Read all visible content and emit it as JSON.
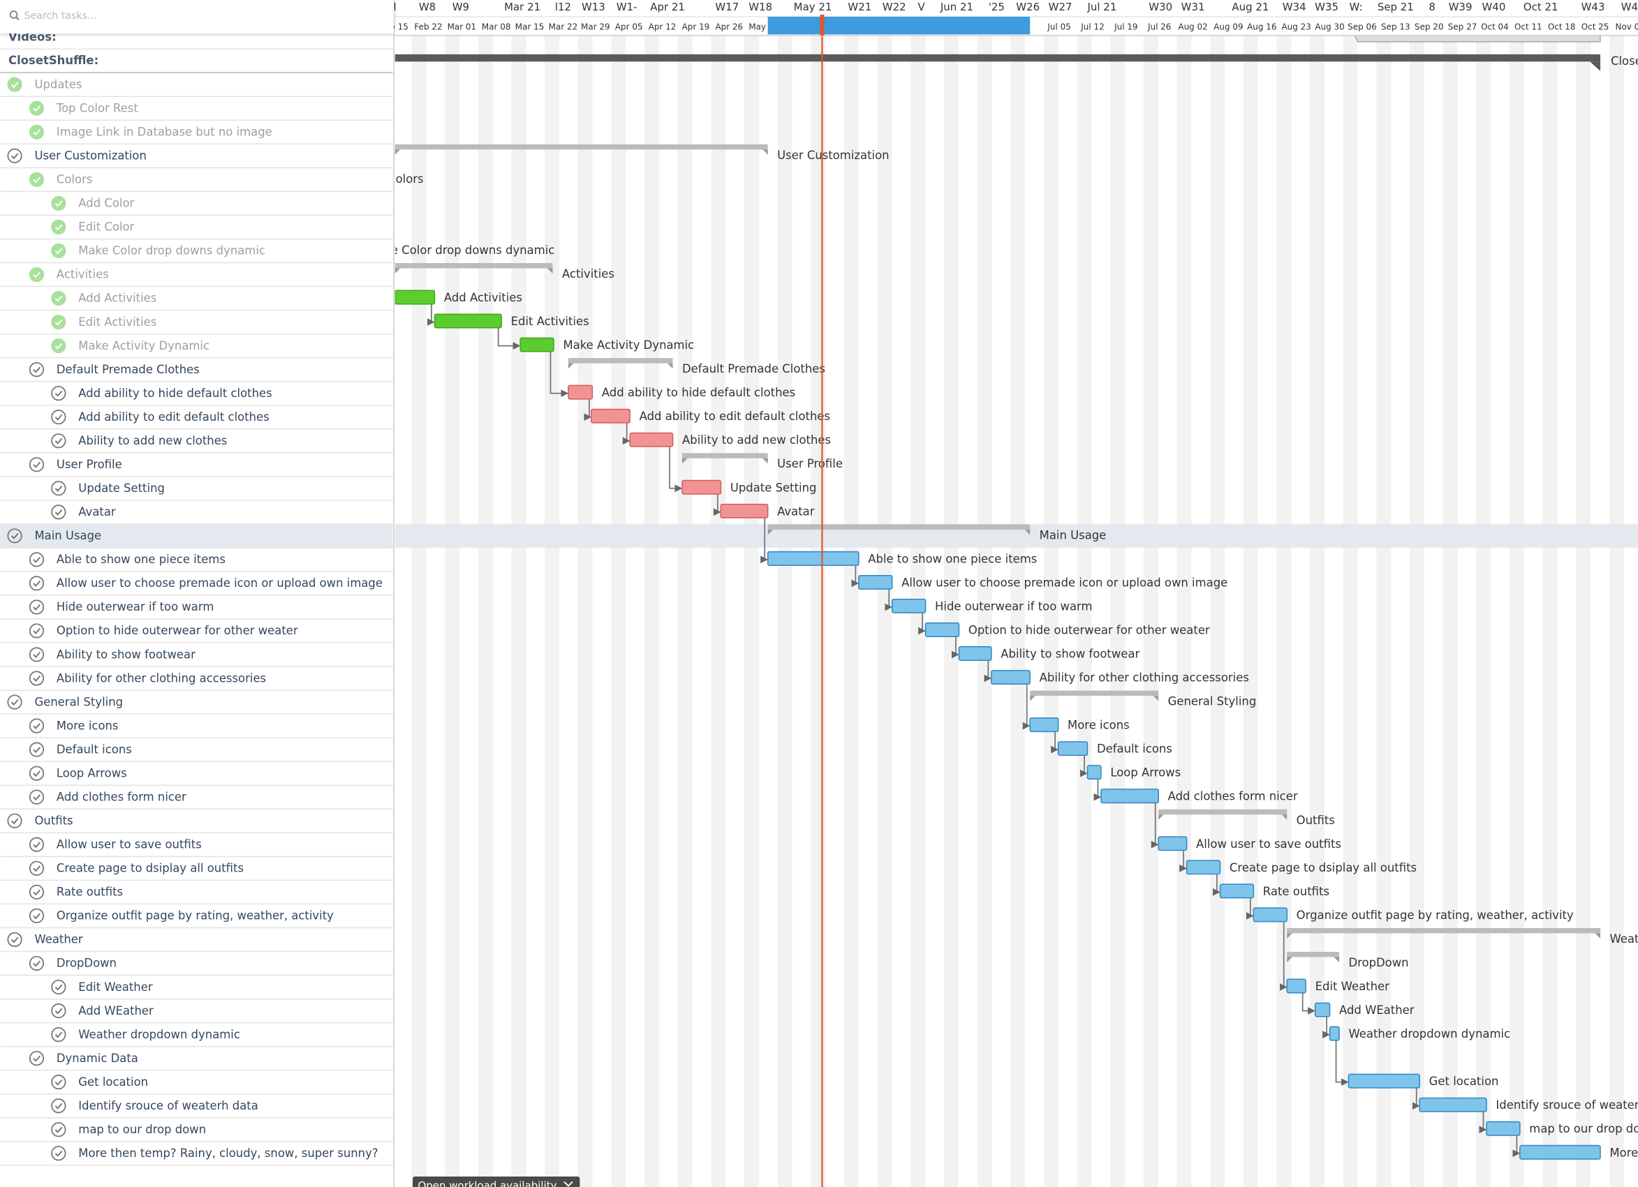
{
  "search": {
    "placeholder": "Search tasks..."
  },
  "projects": [
    "Videos:",
    "ClosetShuffle:"
  ],
  "timeline": {
    "top": [
      "l",
      "W8",
      "W9",
      "Mar 21",
      "l12",
      "W13",
      "W1-",
      "Apr 21",
      "W17",
      "W18",
      "May 21",
      "W21",
      "W22",
      "V",
      "Jun 21",
      "'25",
      "W26",
      "W27",
      "Jul 21",
      "W30",
      "W31",
      "Aug 21",
      "W34",
      "W35",
      "W:",
      "Sep 21",
      "8",
      "W39",
      "W40",
      "Oct 21",
      "W43",
      "W4"
    ],
    "weeks": [
      "b 15",
      "Feb 22",
      "Mar 01",
      "Mar 08",
      "Mar 15",
      "Mar 22",
      "Mar 29",
      "Apr 05",
      "Apr 12",
      "Apr 19",
      "Apr 26",
      "May",
      "Jul 05",
      "Jul 12",
      "Jul 19",
      "Jul 26",
      "Aug 02",
      "Aug 09",
      "Aug 16",
      "Aug 23",
      "Aug 30",
      "Sep 06",
      "Sep 13",
      "Sep 20",
      "Sep 27",
      "Oct 04",
      "Oct 11",
      "Oct 18",
      "Oct 25",
      "Nov 0"
    ]
  },
  "tasks": [
    {
      "name": "Updates",
      "level": 1,
      "status": "done"
    },
    {
      "name": "Top Color Rest",
      "level": 2,
      "status": "done"
    },
    {
      "name": "Image Link in Database but no image",
      "level": 2,
      "status": "done"
    },
    {
      "name": "User Customization",
      "level": 1,
      "status": "open",
      "bar": "summary"
    },
    {
      "name": "Colors",
      "level": 2,
      "status": "done",
      "bar": "summary"
    },
    {
      "name": "Add Color",
      "level": 3,
      "status": "done"
    },
    {
      "name": "Edit Color",
      "level": 3,
      "status": "done"
    },
    {
      "name": "Make Color drop downs dynamic",
      "level": 3,
      "status": "done",
      "bar": "green"
    },
    {
      "name": "Activities",
      "level": 2,
      "status": "done",
      "bar": "summary"
    },
    {
      "name": "Add Activities",
      "level": 3,
      "status": "done",
      "bar": "green"
    },
    {
      "name": "Edit Activities",
      "level": 3,
      "status": "done",
      "bar": "green"
    },
    {
      "name": "Make Activity Dynamic",
      "level": 3,
      "status": "done",
      "bar": "green"
    },
    {
      "name": "Default Premade Clothes",
      "level": 2,
      "status": "open",
      "bar": "summary"
    },
    {
      "name": "Add ability to hide default clothes",
      "level": 3,
      "status": "open",
      "bar": "red"
    },
    {
      "name": "Add ability to edit default clothes",
      "level": 3,
      "status": "open",
      "bar": "red"
    },
    {
      "name": "Ability to add new clothes",
      "level": 3,
      "status": "open",
      "bar": "red"
    },
    {
      "name": "User Profile",
      "level": 2,
      "status": "open",
      "bar": "summary"
    },
    {
      "name": "Update Setting",
      "level": 3,
      "status": "open",
      "bar": "red"
    },
    {
      "name": "Avatar",
      "level": 3,
      "status": "open",
      "bar": "red"
    },
    {
      "name": "Main Usage",
      "level": 1,
      "status": "open",
      "bar": "summary",
      "selected": true
    },
    {
      "name": "Able to show one piece items",
      "level": 2,
      "status": "open",
      "bar": "blue"
    },
    {
      "name": "Allow user to choose premade icon or upload own image",
      "level": 2,
      "status": "open",
      "bar": "blue"
    },
    {
      "name": "Hide outerwear if too warm",
      "level": 2,
      "status": "open",
      "bar": "blue"
    },
    {
      "name": "Option to hide outerwear for other weater",
      "level": 2,
      "status": "open",
      "bar": "blue"
    },
    {
      "name": "Ability to show footwear",
      "level": 2,
      "status": "open",
      "bar": "blue"
    },
    {
      "name": "Ability for other clothing accessories",
      "level": 2,
      "status": "open",
      "bar": "blue"
    },
    {
      "name": "General Styling",
      "level": 1,
      "status": "open",
      "bar": "summary"
    },
    {
      "name": "More icons",
      "level": 2,
      "status": "open",
      "bar": "blue"
    },
    {
      "name": "Default icons",
      "level": 2,
      "status": "open",
      "bar": "blue"
    },
    {
      "name": "Loop Arrows",
      "level": 2,
      "status": "open",
      "bar": "blue"
    },
    {
      "name": "Add clothes form nicer",
      "level": 2,
      "status": "open",
      "bar": "blue"
    },
    {
      "name": "Outfits",
      "level": 1,
      "status": "open",
      "bar": "summary"
    },
    {
      "name": "Allow user to save outfits",
      "level": 2,
      "status": "open",
      "bar": "blue"
    },
    {
      "name": "Create page to dsiplay all outfits",
      "level": 2,
      "status": "open",
      "bar": "blue"
    },
    {
      "name": "Rate outfits",
      "level": 2,
      "status": "open",
      "bar": "blue"
    },
    {
      "name": "Organize outfit page by rating, weather, activity",
      "level": 2,
      "status": "open",
      "bar": "blue"
    },
    {
      "name": "Weather",
      "level": 1,
      "status": "open",
      "bar": "summary"
    },
    {
      "name": "DropDown",
      "level": 2,
      "status": "open",
      "bar": "summary"
    },
    {
      "name": "Edit Weather",
      "level": 3,
      "status": "open",
      "bar": "blue"
    },
    {
      "name": "Add WEather",
      "level": 3,
      "status": "open",
      "bar": "blue"
    },
    {
      "name": "Weather dropdown dynamic",
      "level": 3,
      "status": "open",
      "bar": "blue"
    },
    {
      "name": "Dynamic Data",
      "level": 2,
      "status": "open"
    },
    {
      "name": "Get location",
      "level": 3,
      "status": "open",
      "bar": "blue"
    },
    {
      "name": "Identify srouce of weaterh data",
      "level": 3,
      "status": "open",
      "bar": "blue"
    },
    {
      "name": "map to our drop down",
      "level": 3,
      "status": "open",
      "bar": "blue"
    },
    {
      "name": "More then temp? Rainy, cloudy, snow, super sunny?",
      "level": 3,
      "status": "open",
      "bar": "blue"
    }
  ],
  "footer": {
    "button": "Open workload availability"
  }
}
